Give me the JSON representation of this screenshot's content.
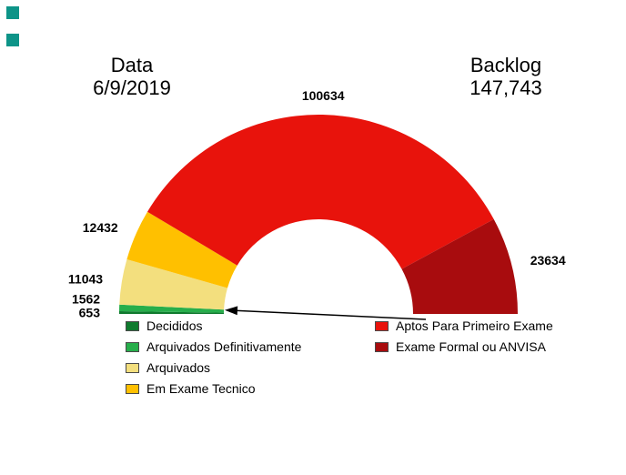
{
  "header": {
    "left_title": "Data",
    "left_value": "6/9/2019",
    "right_title": "Backlog",
    "right_value": "147,743"
  },
  "decor": {
    "corner_square_color": "#0D9488"
  },
  "chart_data": {
    "type": "pie",
    "variant": "half-donut-gauge",
    "legend_position": "bottom",
    "data_labels_shown": true,
    "segments": [
      {
        "label": "Decididos",
        "value": 653,
        "color": "#0F7A2E"
      },
      {
        "label": "Arquivados Definitivamente",
        "value": 1562,
        "color": "#27AE4B"
      },
      {
        "label": "Arquivados",
        "value": 11043,
        "color": "#F3DF7E"
      },
      {
        "label": "Em Exame Tecnico",
        "value": 12432,
        "color": "#FFC000"
      },
      {
        "label": "Aptos Para Primeiro Exame",
        "value": 100634,
        "color": "#E8130C"
      },
      {
        "label": "Exame Formal ou ANVISA",
        "value": 23634,
        "color": "#A80C0E"
      }
    ],
    "legend_left": [
      "Decididos",
      "Arquivados Definitivamente",
      "Arquivados",
      "Em Exame Tecnico"
    ],
    "legend_right": [
      "Aptos Para Primeiro Exame",
      "Exame Formal ou ANVISA"
    ]
  }
}
